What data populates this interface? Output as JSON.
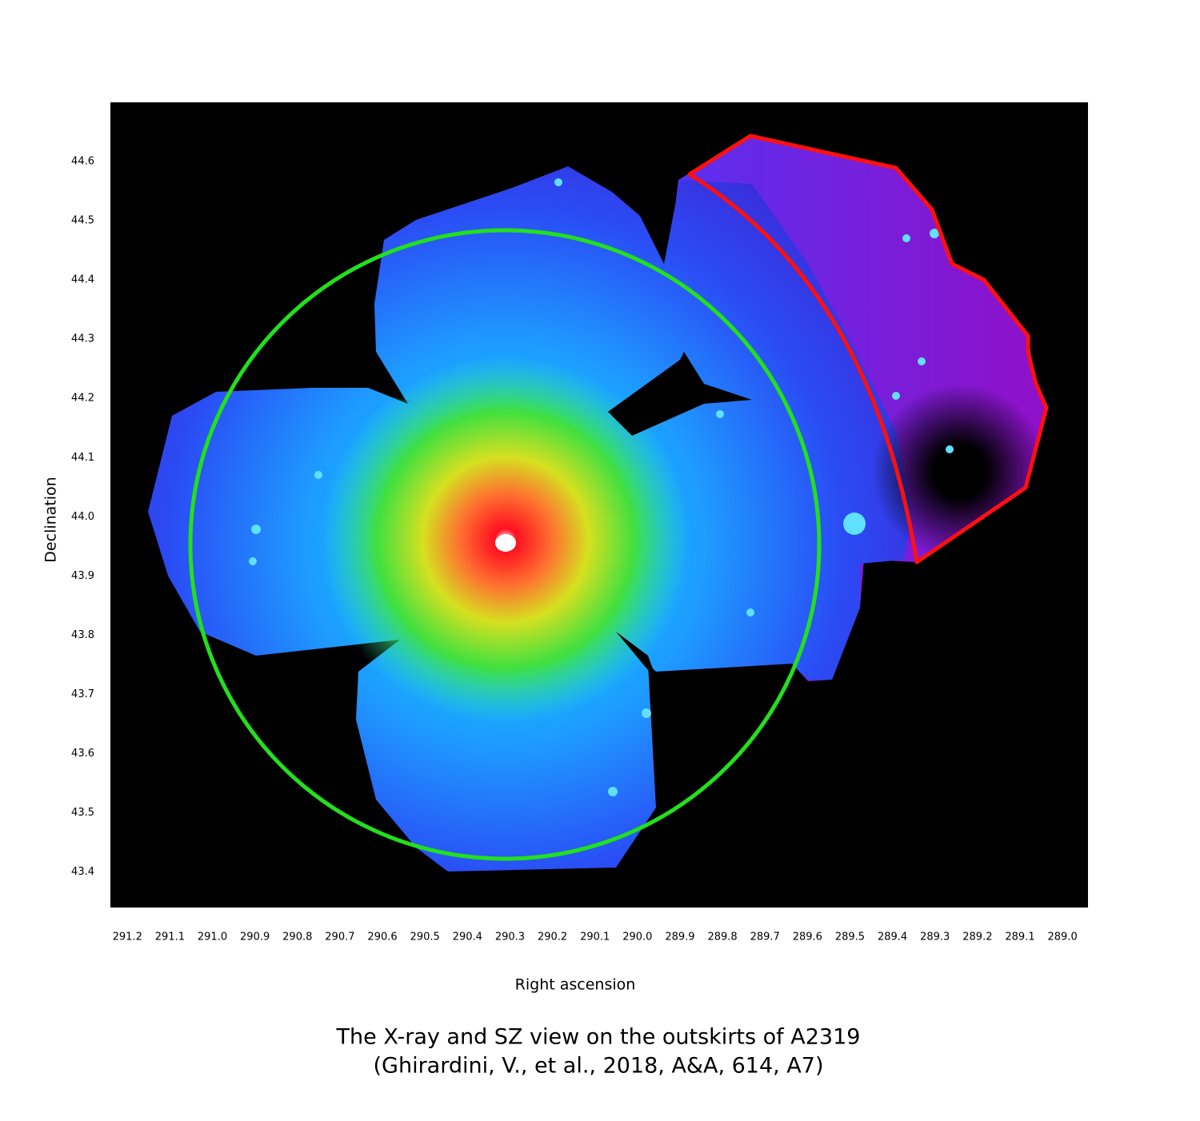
{
  "chart_data": {
    "type": "image",
    "x_label": "Right ascension",
    "y_label": "Declination",
    "caption": [
      "The X-ray and SZ view on the outskirts of A2319",
      "(Ghirardini, V., et al., 2018, A&A, 614, A7)"
    ],
    "xlim": [
      291.24,
      288.94
    ],
    "ylim": [
      43.34,
      44.7
    ],
    "xticks": [
      291.2,
      291.1,
      {
        "value": 291.0,
        "label": "291.0"
      },
      290.9,
      290.8,
      290.7,
      290.6,
      290.5,
      290.4,
      290.3,
      290.2,
      290.1,
      {
        "value": 290.0,
        "label": "290.0"
      },
      289.9,
      289.8,
      289.7,
      289.6,
      289.5,
      289.4,
      289.3,
      289.2,
      289.1,
      {
        "value": 289.0,
        "label": "289.0"
      }
    ],
    "yticks": [
      44.6,
      44.5,
      44.4,
      44.3,
      44.2,
      44.1,
      {
        "value": 44.0,
        "label": "44.0"
      },
      43.9,
      43.8,
      43.7,
      43.6,
      43.5,
      43.4
    ]
  }
}
